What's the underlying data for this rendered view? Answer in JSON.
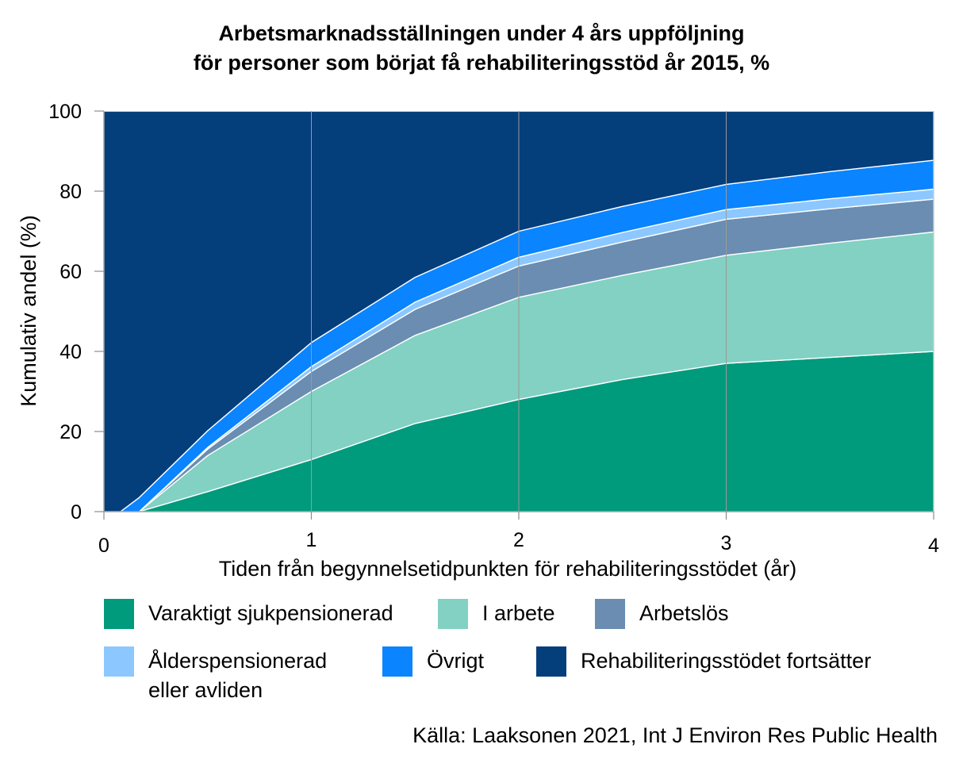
{
  "chart_data": {
    "type": "area",
    "stacked": true,
    "title": "Arbetsmarknadsställningen under 4 års uppföljning",
    "subtitle": "för personer som börjat få rehabiliteringsstöd år 2015, %",
    "xlabel": "Tiden från begynnelsetidpunkten för rehabiliteringsstödet (år)",
    "ylabel": "Kumulativ andel (%)",
    "xlim": [
      0,
      4
    ],
    "ylim": [
      0,
      100
    ],
    "x_ticks": [
      "0",
      "1",
      "2",
      "3",
      "4"
    ],
    "y_ticks": [
      "0",
      "20",
      "40",
      "60",
      "80",
      "100"
    ],
    "grid": "vertical",
    "legend": "bottom",
    "x": [
      0,
      0.08,
      0.17,
      0.5,
      1,
      1.5,
      2,
      2.5,
      3,
      3.5,
      4
    ],
    "series": [
      {
        "name": "Varaktigt sjukpensionerad",
        "color": "#009a7c",
        "values": [
          0,
          0,
          0,
          5,
          13,
          22,
          28,
          33,
          37,
          38.5,
          40
        ]
      },
      {
        "name": "I arbete",
        "color": "#82d1c3",
        "values": [
          0,
          0,
          0,
          9,
          17,
          22,
          25.5,
          26,
          27,
          28.5,
          29.8
        ]
      },
      {
        "name": "Arbetslös",
        "color": "#6a8db1",
        "values": [
          0,
          0,
          0,
          1.6,
          5,
          6.5,
          7.8,
          8.3,
          9,
          8.6,
          8.2
        ]
      },
      {
        "name": "Ålderspensionerad\neller avliden",
        "color": "#8cc8ff",
        "values": [
          0,
          0,
          0,
          0.4,
          1.2,
          1.8,
          2.2,
          2.4,
          2.4,
          2.5,
          2.5
        ]
      },
      {
        "name": "Övrigt",
        "color": "#0a84ff",
        "values": [
          0,
          0,
          3.5,
          4.2,
          6,
          6.2,
          6.5,
          6.5,
          6.3,
          6.8,
          7.2
        ]
      },
      {
        "name": "Rehabiliteringsstödet fortsätter",
        "color": "#043e7b",
        "values": [
          100,
          100,
          96.5,
          79.8,
          57.8,
          41.5,
          30,
          23.8,
          18.3,
          15.1,
          12.3
        ]
      }
    ],
    "source": "Källa: Laaksonen 2021, Int J Environ Res Public Health"
  }
}
